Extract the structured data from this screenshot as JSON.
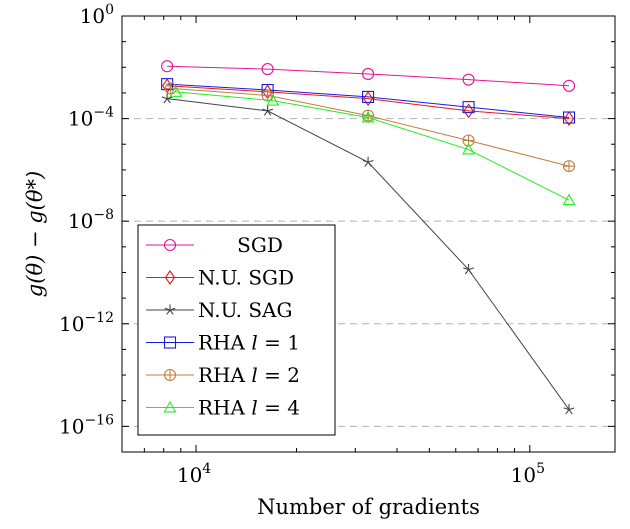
{
  "chart_data": {
    "type": "line",
    "xscale": "log",
    "yscale": "log",
    "xlabel": "Number of gradients",
    "ylabel": "g(θ) − g(θ*)",
    "xlim": [
      6000,
      180000
    ],
    "ylim": [
      1e-17,
      1
    ],
    "x_ticks": [
      {
        "value": 10000,
        "base": "10",
        "exp": "4"
      },
      {
        "value": 100000,
        "base": "10",
        "exp": "5"
      }
    ],
    "y_ticks": [
      {
        "value": 1,
        "base": "10",
        "exp": "0"
      },
      {
        "value": 0.0001,
        "base": "10",
        "exp": "−4"
      },
      {
        "value": 1e-08,
        "base": "10",
        "exp": "−8"
      },
      {
        "value": 1e-12,
        "base": "10",
        "exp": "−12"
      },
      {
        "value": 1e-16,
        "base": "10",
        "exp": "−16"
      }
    ],
    "grid": "horizontal dashed",
    "legend_position": "bottom-left",
    "series": [
      {
        "name": "SGD",
        "color": "#e6139a",
        "marker": "circle",
        "x": [
          8192,
          16384,
          32768,
          65536,
          131072
        ],
        "y": [
          0.011,
          0.0085,
          0.0055,
          0.0033,
          0.0019
        ]
      },
      {
        "name": "N.U. SGD",
        "color": "#e81818",
        "marker": "diamond",
        "x": [
          8192,
          16384,
          32768,
          65536,
          131072
        ],
        "y": [
          0.0019,
          0.0011,
          0.0006,
          0.0002,
          0.0001
        ]
      },
      {
        "name": "N.U. SAG",
        "color": "#444444",
        "marker": "star",
        "x": [
          8192,
          16384,
          32768,
          65536,
          131072
        ],
        "y": [
          0.0006,
          0.0002,
          2e-06,
          1.3e-10,
          4.5e-16
        ]
      },
      {
        "name": "RHA l = 1",
        "color": "#1a1ae6",
        "marker": "square",
        "x": [
          8192,
          16384,
          32768,
          65536,
          131072
        ],
        "y": [
          0.0022,
          0.0013,
          0.0007,
          0.00028,
          0.00011
        ]
      },
      {
        "name": "RHA l = 2",
        "color": "#c08040",
        "marker": "circle-plus",
        "x": [
          8400,
          16384,
          32768,
          65536,
          131072
        ],
        "y": [
          0.0015,
          0.0008,
          0.00013,
          1.4e-05,
          1.4e-06
        ]
      },
      {
        "name": "RHA l = 4",
        "color": "#22ee22",
        "marker": "triangle",
        "x": [
          8700,
          17000,
          32768,
          65536,
          131072
        ],
        "y": [
          0.0011,
          0.0005,
          0.00011,
          6.2e-06,
          6.6e-08
        ]
      }
    ],
    "legend_parts": [
      {
        "text": "SGD",
        "ital": ""
      },
      {
        "text": "N.U. SGD",
        "ital": ""
      },
      {
        "text": "N.U. SAG",
        "ital": ""
      },
      {
        "text": "RHA ",
        "ital": "l",
        "after": " = 1"
      },
      {
        "text": "RHA ",
        "ital": "l",
        "after": " = 2"
      },
      {
        "text": "RHA ",
        "ital": "l",
        "after": " = 4"
      }
    ]
  }
}
